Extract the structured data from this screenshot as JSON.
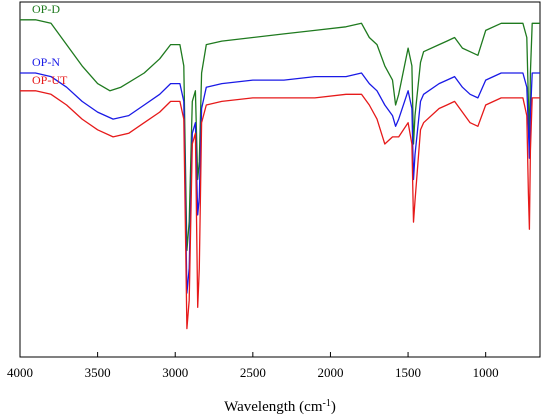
{
  "chart_data": {
    "type": "line",
    "title": "",
    "xlabel": "Wavelength (cm",
    "xlabel_unit_superscript": "-1",
    "xlabel_close": ")",
    "ylabel": "",
    "xlim": [
      4000,
      650
    ],
    "x_reversed": true,
    "x_ticks": [
      4000,
      3500,
      3000,
      2500,
      2000,
      1500,
      1000
    ],
    "ylim": [
      0,
      100
    ],
    "grid": false,
    "legend": "inline labels top-left",
    "series": [
      {
        "name": "OP-D",
        "color": "#1f7a1f",
        "points": [
          [
            4000,
            95
          ],
          [
            3900,
            95
          ],
          [
            3800,
            94
          ],
          [
            3700,
            88
          ],
          [
            3600,
            82
          ],
          [
            3500,
            77
          ],
          [
            3420,
            75
          ],
          [
            3350,
            76
          ],
          [
            3200,
            80
          ],
          [
            3100,
            84
          ],
          [
            3030,
            88
          ],
          [
            2970,
            88
          ],
          [
            2945,
            82
          ],
          [
            2925,
            30
          ],
          [
            2910,
            38
          ],
          [
            2890,
            72
          ],
          [
            2870,
            75
          ],
          [
            2855,
            50
          ],
          [
            2845,
            55
          ],
          [
            2830,
            80
          ],
          [
            2800,
            88
          ],
          [
            2700,
            89
          ],
          [
            2500,
            90
          ],
          [
            2300,
            91
          ],
          [
            2100,
            92
          ],
          [
            1900,
            93
          ],
          [
            1800,
            94
          ],
          [
            1750,
            90
          ],
          [
            1700,
            88
          ],
          [
            1650,
            82
          ],
          [
            1600,
            78
          ],
          [
            1580,
            71
          ],
          [
            1560,
            74
          ],
          [
            1500,
            87
          ],
          [
            1475,
            82
          ],
          [
            1465,
            60
          ],
          [
            1455,
            68
          ],
          [
            1420,
            83
          ],
          [
            1400,
            86
          ],
          [
            1300,
            88
          ],
          [
            1250,
            89
          ],
          [
            1200,
            90
          ],
          [
            1150,
            87
          ],
          [
            1100,
            86
          ],
          [
            1050,
            85
          ],
          [
            1000,
            92
          ],
          [
            900,
            94
          ],
          [
            800,
            94
          ],
          [
            760,
            94
          ],
          [
            735,
            90
          ],
          [
            725,
            72
          ],
          [
            718,
            60
          ],
          [
            712,
            80
          ],
          [
            700,
            94
          ],
          [
            650,
            94
          ]
        ]
      },
      {
        "name": "OP-N",
        "color": "#1a1ae6",
        "points": [
          [
            4000,
            80
          ],
          [
            3900,
            80
          ],
          [
            3800,
            79
          ],
          [
            3700,
            76
          ],
          [
            3600,
            72
          ],
          [
            3500,
            69
          ],
          [
            3400,
            67
          ],
          [
            3300,
            68
          ],
          [
            3200,
            71
          ],
          [
            3100,
            74
          ],
          [
            3030,
            77
          ],
          [
            2970,
            77
          ],
          [
            2945,
            72
          ],
          [
            2925,
            18
          ],
          [
            2910,
            25
          ],
          [
            2890,
            63
          ],
          [
            2870,
            66
          ],
          [
            2855,
            40
          ],
          [
            2845,
            45
          ],
          [
            2830,
            70
          ],
          [
            2800,
            76
          ],
          [
            2700,
            77
          ],
          [
            2500,
            78
          ],
          [
            2300,
            78
          ],
          [
            2100,
            79
          ],
          [
            1900,
            79
          ],
          [
            1800,
            80
          ],
          [
            1750,
            77
          ],
          [
            1700,
            75
          ],
          [
            1650,
            71
          ],
          [
            1600,
            68
          ],
          [
            1580,
            65
          ],
          [
            1560,
            67
          ],
          [
            1500,
            75
          ],
          [
            1475,
            70
          ],
          [
            1465,
            50
          ],
          [
            1455,
            57
          ],
          [
            1420,
            72
          ],
          [
            1400,
            74
          ],
          [
            1300,
            77
          ],
          [
            1250,
            78
          ],
          [
            1200,
            79
          ],
          [
            1150,
            76
          ],
          [
            1100,
            74
          ],
          [
            1050,
            73
          ],
          [
            1000,
            78
          ],
          [
            900,
            80
          ],
          [
            800,
            80
          ],
          [
            760,
            80
          ],
          [
            735,
            76
          ],
          [
            725,
            64
          ],
          [
            718,
            56
          ],
          [
            712,
            68
          ],
          [
            700,
            80
          ],
          [
            650,
            80
          ]
        ]
      },
      {
        "name": "OP-UT",
        "color": "#e61a1a",
        "points": [
          [
            4000,
            75
          ],
          [
            3900,
            75
          ],
          [
            3800,
            74
          ],
          [
            3700,
            71
          ],
          [
            3600,
            67
          ],
          [
            3500,
            64
          ],
          [
            3400,
            62
          ],
          [
            3300,
            63
          ],
          [
            3200,
            66
          ],
          [
            3100,
            69
          ],
          [
            3030,
            72
          ],
          [
            2970,
            72
          ],
          [
            2945,
            67
          ],
          [
            2925,
            8
          ],
          [
            2910,
            16
          ],
          [
            2890,
            60
          ],
          [
            2870,
            63
          ],
          [
            2855,
            14
          ],
          [
            2845,
            25
          ],
          [
            2830,
            66
          ],
          [
            2800,
            71
          ],
          [
            2700,
            72
          ],
          [
            2500,
            73
          ],
          [
            2300,
            73
          ],
          [
            2100,
            73
          ],
          [
            1900,
            74
          ],
          [
            1800,
            74
          ],
          [
            1750,
            71
          ],
          [
            1700,
            67
          ],
          [
            1650,
            60
          ],
          [
            1600,
            62
          ],
          [
            1560,
            62
          ],
          [
            1500,
            66
          ],
          [
            1475,
            60
          ],
          [
            1465,
            38
          ],
          [
            1455,
            44
          ],
          [
            1420,
            64
          ],
          [
            1400,
            66
          ],
          [
            1300,
            70
          ],
          [
            1250,
            71
          ],
          [
            1200,
            72
          ],
          [
            1150,
            69
          ],
          [
            1100,
            66
          ],
          [
            1050,
            65
          ],
          [
            1000,
            71
          ],
          [
            900,
            73
          ],
          [
            800,
            73
          ],
          [
            760,
            73
          ],
          [
            735,
            68
          ],
          [
            725,
            46
          ],
          [
            718,
            36
          ],
          [
            712,
            58
          ],
          [
            700,
            73
          ],
          [
            650,
            73
          ]
        ]
      }
    ]
  }
}
